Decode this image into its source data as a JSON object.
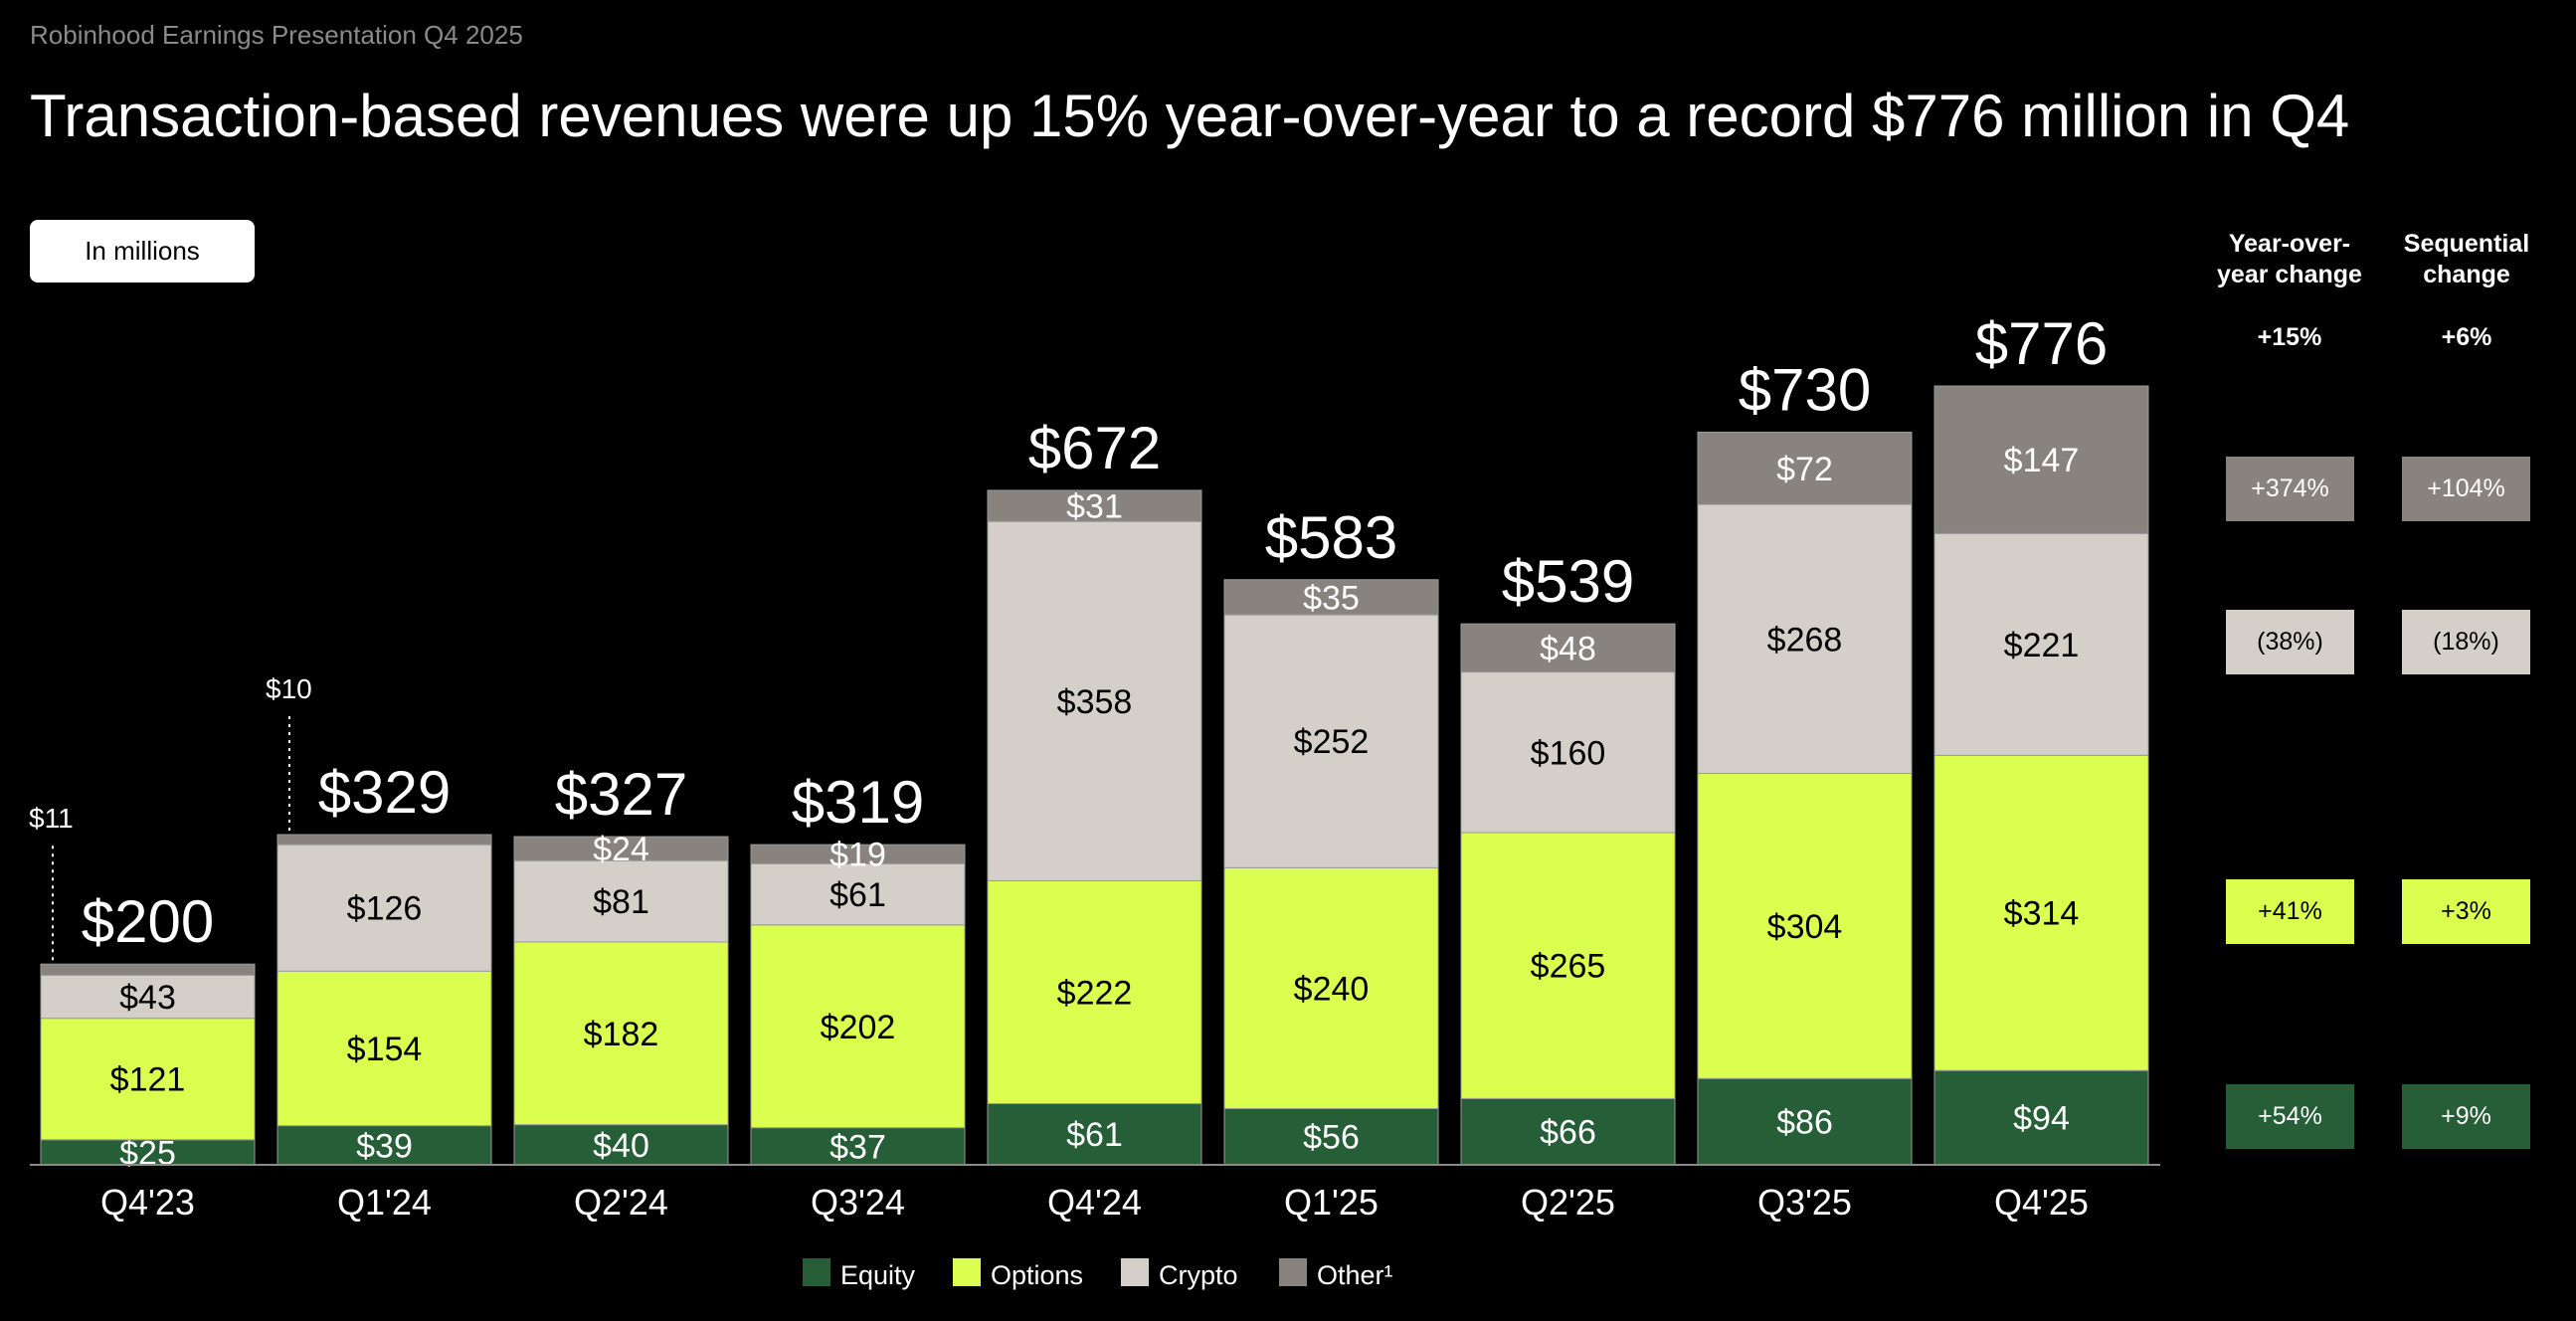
{
  "header": {
    "subtitle": "Robinhood Earnings Presentation Q4 2025",
    "title": "Transaction-based revenues were up 15% year-over-year to a record $776 million in Q4",
    "unit_label": "In millions"
  },
  "colors": {
    "Equity": "#265e37",
    "Options": "#dbff4f",
    "Crypto": "#d4cfc9",
    "Other": "#88837f"
  },
  "chart_data": {
    "type": "bar",
    "stacked": true,
    "categories": [
      "Q4'23",
      "Q1'24",
      "Q2'24",
      "Q3'24",
      "Q4'24",
      "Q1'25",
      "Q2'25",
      "Q3'25",
      "Q4'25"
    ],
    "series": [
      {
        "name": "Equity",
        "values": [
          25,
          39,
          40,
          37,
          61,
          56,
          66,
          86,
          94
        ]
      },
      {
        "name": "Options",
        "values": [
          121,
          154,
          182,
          202,
          222,
          240,
          265,
          304,
          314
        ]
      },
      {
        "name": "Crypto",
        "values": [
          43,
          126,
          81,
          61,
          358,
          252,
          160,
          268,
          221
        ]
      },
      {
        "name": "Other¹",
        "values": [
          11,
          10,
          24,
          19,
          31,
          35,
          48,
          72,
          147
        ]
      }
    ],
    "totals": [
      200,
      329,
      327,
      319,
      672,
      583,
      539,
      730,
      776
    ],
    "value_prefix": "$",
    "legend_position": "bottom",
    "grid": false
  },
  "changes": {
    "yoy_header": "Year-over-\nyear change",
    "seq_header": "Sequential\nchange",
    "yoy_total": "+15%",
    "seq_total": "+6%",
    "rows": [
      {
        "series": "Other",
        "yoy": "+374%",
        "seq": "+104%"
      },
      {
        "series": "Crypto",
        "yoy": "(38%)",
        "seq": "(18%)"
      },
      {
        "series": "Options",
        "yoy": "+41%",
        "seq": "+3%"
      },
      {
        "series": "Equity",
        "yoy": "+54%",
        "seq": "+9%"
      }
    ]
  }
}
